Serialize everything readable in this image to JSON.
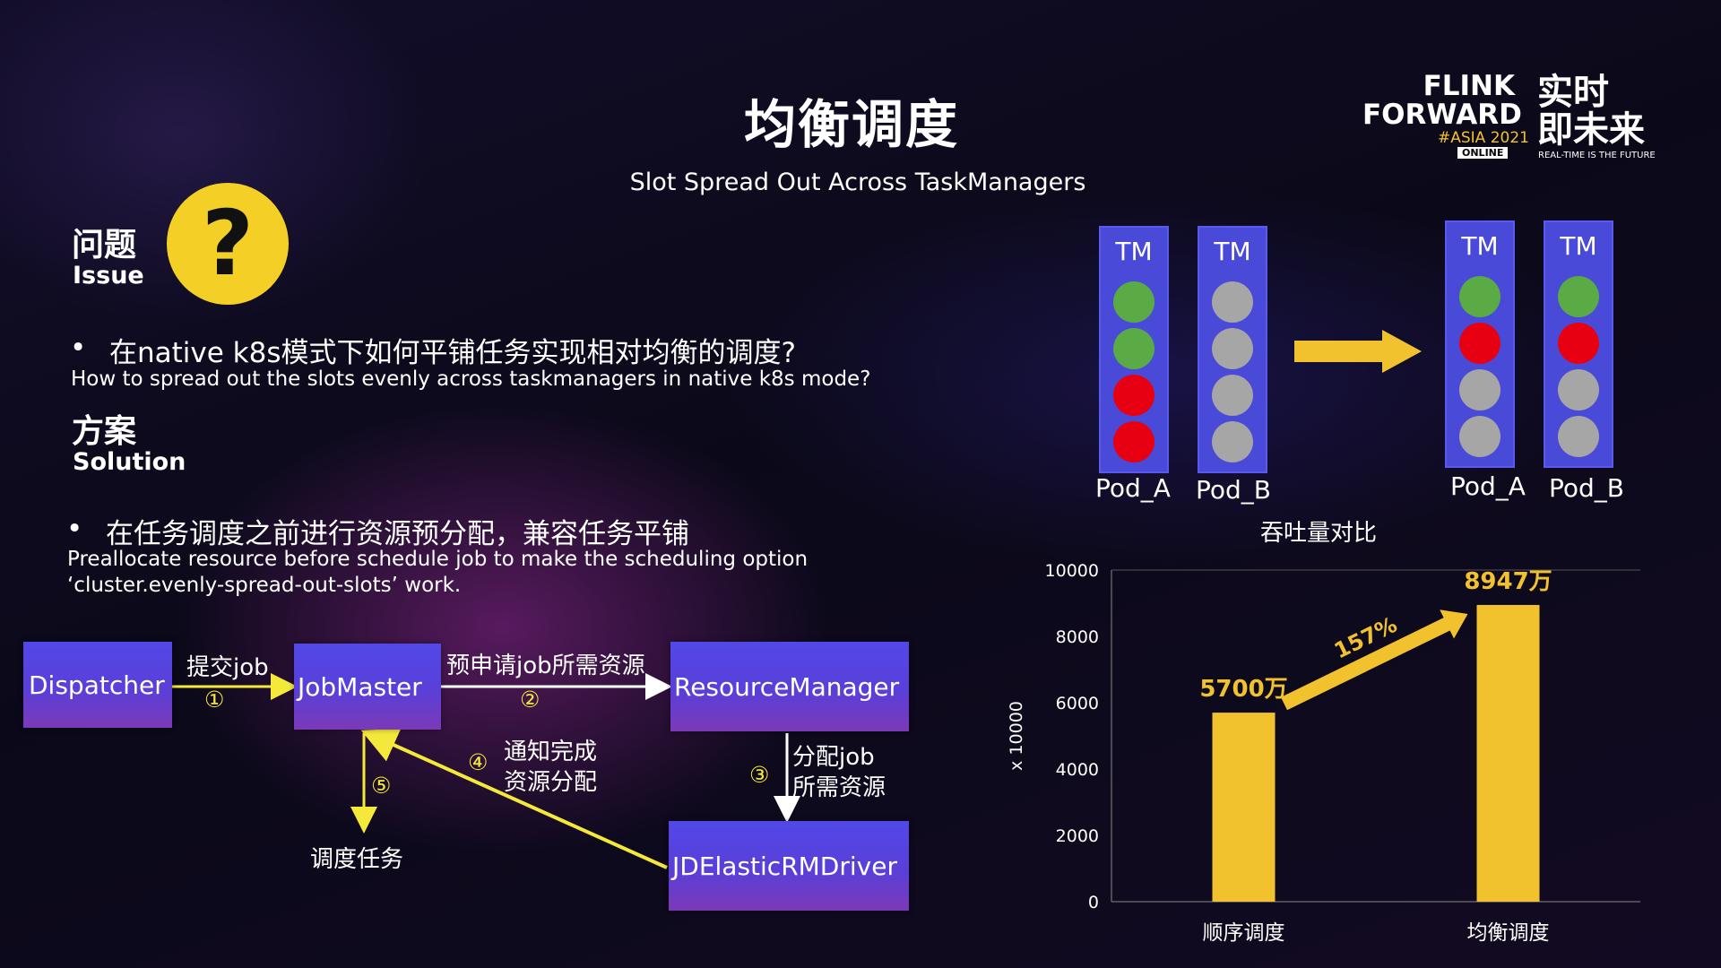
{
  "title": "均衡调度",
  "subtitle": "Slot Spread Out Across TaskManagers",
  "logo": {
    "line1": "FLINK",
    "line2": "FORWARD",
    "asia": "#ASIA 2021",
    "online": "ONLINE",
    "cn_line1": "实时",
    "cn_line2": "即未来",
    "tagline": "REAL-TIME IS THE FUTURE"
  },
  "issue": {
    "heading_cn": "问题",
    "heading_en": "Issue",
    "icon": "question-mark-icon",
    "bullet": "•",
    "text_cn": "在native k8s模式下如何平铺任务实现相对均衡的调度?",
    "text_en": "How to spread out the slots evenly across taskmanagers in native k8s mode?"
  },
  "solution": {
    "heading_cn": "方案",
    "heading_en": "Solution",
    "bullet": "•",
    "text_cn": "在任务调度之前进行资源预分配，兼容任务平铺",
    "text_en_line1": "Preallocate resource before schedule job to make the scheduling option",
    "text_en_line2": "‘cluster.evenly-spread-out-slots’ work."
  },
  "flow": {
    "dispatcher": "Dispatcher",
    "jobmaster": "JobMaster",
    "resourcemanager": "ResourceManager",
    "rmdriver": "JDElasticRMDriver",
    "step1_label": "提交job",
    "step1_num": "①",
    "step2_label": "预申请job所需资源",
    "step2_num": "②",
    "step3_label_line1": "分配job",
    "step3_label_line2": "所需资源",
    "step3_num": "③",
    "step4_label_line1": "通知完成",
    "step4_label_line2": "资源分配",
    "step4_num": "④",
    "step5_label": "调度任务",
    "step5_num": "⑤"
  },
  "slot_diagram": {
    "tm_label": "TM",
    "colors": {
      "green": "#5aab45",
      "red": "#e60012",
      "gray": "#a6a6a6",
      "tm_fill": "#4a4ad8",
      "arrow": "#f2c12e"
    },
    "before": [
      {
        "pod": "Pod_A",
        "slots": [
          "green",
          "green",
          "red",
          "red"
        ]
      },
      {
        "pod": "Pod_B",
        "slots": [
          "gray",
          "gray",
          "gray",
          "gray"
        ]
      }
    ],
    "after": [
      {
        "pod": "Pod_A",
        "slots": [
          "green",
          "red",
          "gray",
          "gray"
        ]
      },
      {
        "pod": "Pod_B",
        "slots": [
          "green",
          "red",
          "gray",
          "gray"
        ]
      }
    ]
  },
  "chart_data": {
    "type": "bar",
    "title": "吞吐量对比",
    "ylabel": "x 10000",
    "categories": [
      "顺序调度",
      "均衡调度"
    ],
    "values": [
      5700,
      8947
    ],
    "data_labels": [
      "5700万",
      "8947万"
    ],
    "ylim": [
      0,
      10000
    ],
    "yticks": [
      0,
      2000,
      4000,
      6000,
      8000,
      10000
    ],
    "grid": false,
    "bar_color": "#f2c12e",
    "annotation": "157%"
  }
}
